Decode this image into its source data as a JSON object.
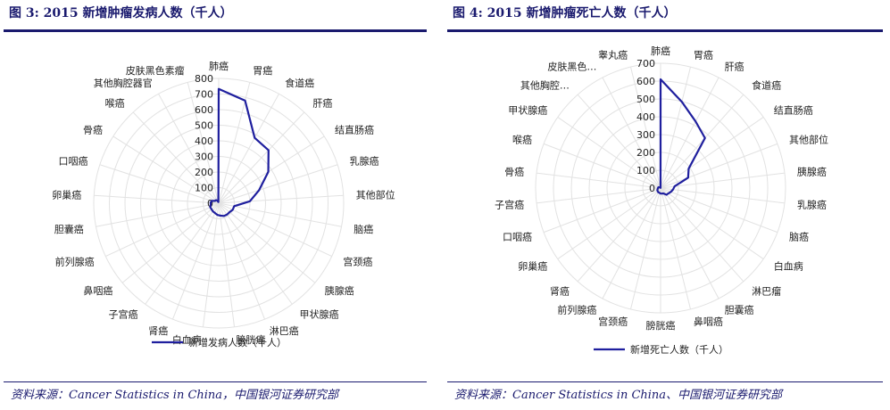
{
  "figures": [
    {
      "title": "图 3:  2015 新增肿瘤发病人数（千人）",
      "source": "资料来源：Cancer Statistics in China，中国银河证券研究部",
      "legend_label": "新增发病人数（千人）"
    },
    {
      "title": "图 4:  2015 新增肿瘤死亡人数（千人）",
      "source": "资料来源：Cancer Statistics in China、中国银河证券研究部",
      "legend_label": "新增死亡人数（千人）"
    }
  ],
  "chart_data": [
    {
      "type": "radar",
      "legend_position": "bottom",
      "grid": true,
      "rlim": [
        0,
        800
      ],
      "r_ticks": [
        0,
        100,
        200,
        300,
        400,
        500,
        600,
        700,
        800
      ],
      "categories": [
        "肺癌",
        "胃癌",
        "食道癌",
        "肝癌",
        "结直肠癌",
        "乳腺癌",
        "其他部位",
        "脑癌",
        "宫颈癌",
        "胰腺癌",
        "甲状腺癌",
        "淋巴癌",
        "膀胱癌",
        "白血病",
        "肾癌",
        "子宫癌",
        "鼻咽癌",
        "前列腺癌",
        "胆囊癌",
        "卵巢癌",
        "口咽癌",
        "骨癌",
        "喉癌",
        "其他胸腔器官",
        "皮肤黑色素瘤"
      ],
      "series": [
        {
          "name": "新增发病人数（千人）",
          "color": "#1f1f9e",
          "values": [
            733,
            679,
            478,
            466,
            376,
            272,
            200,
            101,
            99,
            90,
            90,
            88,
            80,
            75,
            67,
            64,
            60,
            60,
            52,
            52,
            48,
            28,
            27,
            20,
            8
          ]
        }
      ]
    },
    {
      "type": "radar",
      "legend_position": "bottom",
      "grid": true,
      "rlim": [
        0,
        700
      ],
      "r_ticks": [
        0,
        100,
        200,
        300,
        400,
        500,
        600,
        700
      ],
      "categories": [
        "肺癌",
        "胃癌",
        "肝癌",
        "食道癌",
        "结直肠癌",
        "其他部位",
        "胰腺癌",
        "乳腺癌",
        "脑癌",
        "白血病",
        "淋巴瘤",
        "胆囊癌",
        "鼻咽癌",
        "膀胱癌",
        "宫颈癌",
        "前列腺癌",
        "肾癌",
        "卵巢癌",
        "口咽癌",
        "子宫癌",
        "骨癌",
        "喉癌",
        "甲状腺癌",
        "其他胸腔…",
        "皮肤黑色…",
        "睾丸癌"
      ],
      "series": [
        {
          "name": "新增死亡人数（千人）",
          "color": "#1f1f9e",
          "values": [
            610,
            498,
            422,
            375,
            191,
            165,
            79,
            70,
            61,
            53,
            50,
            34,
            32,
            31,
            27,
            27,
            24,
            22,
            18,
            15,
            14,
            13,
            7,
            6,
            3,
            1
          ]
        }
      ]
    }
  ]
}
